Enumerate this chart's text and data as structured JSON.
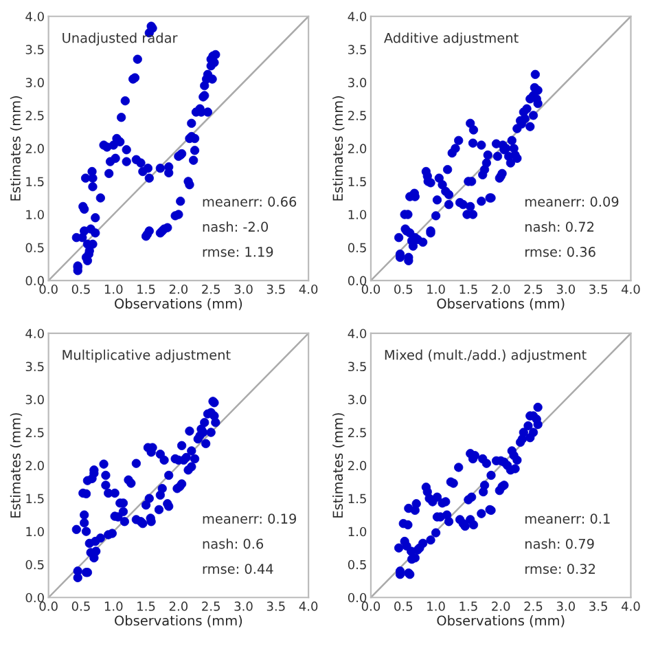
{
  "chart_data": [
    {
      "type": "scatter",
      "xlabel": "Observations (mm)",
      "ylabel": "Estimates (mm)",
      "annotations": [
        "Unadjusted radar",
        "meanerr: 0.66",
        "nash: -2.0",
        "rmse: 1.19"
      ],
      "xlim": [
        0,
        4
      ],
      "ylim": [
        0,
        4
      ],
      "xticks": [
        {
          "value": 0,
          "label": "0.0"
        },
        {
          "value": 0.5,
          "label": "0.5"
        },
        {
          "value": 1,
          "label": "1.0"
        },
        {
          "value": 1.5,
          "label": "1.5"
        },
        {
          "value": 2,
          "label": "2.0"
        },
        {
          "value": 2.5,
          "label": "2.5"
        },
        {
          "value": 3,
          "label": "3.0"
        },
        {
          "value": 3.5,
          "label": "3.5"
        },
        {
          "value": 4,
          "label": "4.0"
        }
      ],
      "yticks": [
        {
          "value": 0,
          "label": "0.0"
        },
        {
          "value": 0.5,
          "label": "0.5"
        },
        {
          "value": 1,
          "label": "1.0"
        },
        {
          "value": 1.5,
          "label": "1.5"
        },
        {
          "value": 2,
          "label": "2.0"
        },
        {
          "value": 2.5,
          "label": "2.5"
        },
        {
          "value": 3,
          "label": "3.0"
        },
        {
          "value": 3.5,
          "label": "3.5"
        },
        {
          "value": 4,
          "label": "4.0"
        }
      ],
      "series": [
        {
          "type": "line",
          "marker": "none",
          "color": "#aaaaaa",
          "x": [
            0,
            4
          ],
          "values": [
            0,
            4
          ]
        },
        {
          "marker": "circle",
          "color": "#0000cc",
          "x": [
            0.43,
            0.45,
            0.45,
            0.45,
            0.52,
            0.53,
            0.55,
            0.55,
            0.57,
            0.58,
            0.6,
            0.6,
            0.62,
            0.63,
            0.65,
            0.67,
            0.68,
            0.68,
            0.68,
            0.72,
            0.72,
            0.8,
            0.85,
            0.9,
            0.93,
            0.95,
            1.0,
            1.03,
            1.05,
            1.1,
            1.12,
            1.18,
            1.2,
            1.2,
            1.3,
            1.33,
            1.35,
            1.37,
            1.42,
            1.45,
            1.53,
            1.55,
            1.5,
            1.52,
            1.55,
            1.55,
            1.58,
            1.6,
            1.72,
            1.75,
            1.78,
            1.83,
            1.85,
            1.85,
            1.72,
            1.95,
            2.0,
            2.03,
            2.0,
            2.03,
            2.05,
            2.15,
            2.17,
            2.17,
            2.2,
            2.2,
            2.23,
            2.25,
            2.25,
            2.27,
            2.33,
            2.35,
            2.38,
            2.4,
            2.4,
            2.43,
            2.45,
            2.45,
            2.5,
            2.5,
            2.52,
            2.53,
            2.55,
            2.57
          ],
          "values": [
            0.65,
            0.2,
            0.15,
            0.22,
            0.65,
            1.12,
            1.08,
            0.75,
            1.55,
            0.35,
            0.55,
            0.3,
            0.4,
            0.45,
            0.78,
            1.65,
            1.55,
            1.42,
            0.55,
            0.95,
            0.72,
            1.25,
            2.05,
            2.02,
            1.62,
            1.8,
            2.05,
            1.85,
            2.15,
            2.1,
            2.47,
            2.72,
            1.98,
            1.8,
            3.05,
            3.07,
            1.83,
            3.35,
            1.78,
            1.65,
            1.7,
            1.55,
            0.67,
            0.7,
            0.75,
            3.75,
            3.85,
            3.82,
            0.72,
            0.75,
            0.78,
            0.8,
            1.72,
            1.63,
            1.7,
            0.98,
            1.0,
            1.2,
            1.88,
            1.9,
            1.92,
            1.5,
            1.45,
            2.15,
            2.18,
            2.38,
            1.82,
            2.15,
            1.97,
            2.55,
            2.6,
            2.55,
            2.78,
            2.8,
            2.95,
            3.05,
            2.55,
            3.12,
            3.25,
            3.35,
            3.05,
            3.4,
            3.3,
            3.42
          ]
        }
      ]
    },
    {
      "type": "scatter",
      "xlabel": "Observations (mm)",
      "ylabel": "Estimates (mm)",
      "annotations": [
        "Additive adjustment",
        "meanerr: 0.09",
        "nash: 0.72",
        "rmse: 0.36"
      ],
      "xlim": [
        0,
        4
      ],
      "ylim": [
        0,
        4
      ],
      "xticks": [
        {
          "value": 0,
          "label": "0.0"
        },
        {
          "value": 0.5,
          "label": "0.5"
        },
        {
          "value": 1,
          "label": "1.0"
        },
        {
          "value": 1.5,
          "label": "1.5"
        },
        {
          "value": 2,
          "label": "2.0"
        },
        {
          "value": 2.5,
          "label": "2.5"
        },
        {
          "value": 3,
          "label": "3.0"
        },
        {
          "value": 3.5,
          "label": "3.5"
        },
        {
          "value": 4,
          "label": "4.0"
        }
      ],
      "yticks": [
        {
          "value": 0,
          "label": "0.0"
        },
        {
          "value": 0.5,
          "label": "0.5"
        },
        {
          "value": 1,
          "label": "1.0"
        },
        {
          "value": 1.5,
          "label": "1.5"
        },
        {
          "value": 2,
          "label": "2.0"
        },
        {
          "value": 2.5,
          "label": "2.5"
        },
        {
          "value": 3,
          "label": "3.0"
        },
        {
          "value": 3.5,
          "label": "3.5"
        },
        {
          "value": 4,
          "label": "4.0"
        }
      ],
      "series": [
        {
          "type": "line",
          "marker": "none",
          "color": "#aaaaaa",
          "x": [
            0,
            4
          ],
          "values": [
            0,
            4
          ]
        },
        {
          "marker": "circle",
          "color": "#0000cc",
          "x": [
            0.43,
            0.45,
            0.45,
            0.52,
            0.53,
            0.55,
            0.57,
            0.58,
            0.58,
            0.6,
            0.6,
            0.63,
            0.65,
            0.67,
            0.68,
            0.68,
            0.72,
            0.8,
            0.85,
            0.87,
            0.88,
            0.92,
            0.92,
            0.92,
            1.0,
            1.02,
            1.05,
            1.1,
            1.15,
            1.18,
            1.2,
            1.2,
            1.25,
            1.3,
            1.35,
            1.37,
            1.42,
            1.48,
            1.5,
            1.53,
            1.53,
            1.58,
            1.57,
            1.57,
            1.55,
            1.7,
            1.7,
            1.72,
            1.75,
            1.78,
            1.8,
            1.83,
            1.85,
            1.93,
            1.95,
            1.98,
            2.0,
            2.02,
            2.03,
            2.05,
            2.08,
            2.12,
            2.15,
            2.17,
            2.2,
            2.22,
            2.25,
            2.25,
            2.3,
            2.32,
            2.35,
            2.37,
            2.4,
            2.45,
            2.45,
            2.5,
            2.5,
            2.52,
            2.53,
            2.55,
            2.57,
            2.57
          ],
          "values": [
            0.65,
            0.4,
            0.35,
            1.0,
            0.78,
            0.75,
            1.0,
            0.35,
            0.3,
            1.27,
            0.72,
            0.6,
            0.52,
            1.32,
            1.27,
            0.65,
            0.62,
            0.58,
            1.65,
            1.58,
            1.5,
            1.48,
            0.72,
            0.75,
            0.98,
            1.22,
            1.55,
            1.45,
            1.35,
            1.68,
            1.15,
            1.3,
            1.93,
            2.0,
            2.12,
            1.18,
            1.15,
            1.0,
            1.5,
            1.12,
            2.38,
            2.28,
            1.0,
            2.08,
            1.5,
            1.2,
            2.05,
            1.6,
            1.68,
            1.78,
            1.9,
            1.25,
            1.25,
            2.07,
            1.88,
            1.55,
            1.58,
            1.62,
            2.05,
            1.98,
            2.0,
            1.88,
            1.78,
            2.12,
            2.0,
            1.9,
            1.85,
            2.3,
            2.42,
            2.37,
            2.55,
            2.45,
            2.6,
            2.33,
            2.75,
            2.8,
            2.5,
            2.92,
            3.12,
            2.75,
            2.88,
            2.68
          ]
        }
      ]
    },
    {
      "type": "scatter",
      "xlabel": "Observations (mm)",
      "ylabel": "Estimates (mm)",
      "annotations": [
        "Multiplicative adjustment",
        "meanerr: 0.19",
        "nash: 0.6",
        "rmse: 0.44"
      ],
      "xlim": [
        0,
        4
      ],
      "ylim": [
        0,
        4
      ],
      "xticks": [
        {
          "value": 0,
          "label": "0.0"
        },
        {
          "value": 0.5,
          "label": "0.5"
        },
        {
          "value": 1,
          "label": "1.0"
        },
        {
          "value": 1.5,
          "label": "1.5"
        },
        {
          "value": 2,
          "label": "2.0"
        },
        {
          "value": 2.5,
          "label": "2.5"
        },
        {
          "value": 3,
          "label": "3.0"
        },
        {
          "value": 3.5,
          "label": "3.5"
        },
        {
          "value": 4,
          "label": "4.0"
        }
      ],
      "yticks": [
        {
          "value": 0,
          "label": "0.0"
        },
        {
          "value": 0.5,
          "label": "0.5"
        },
        {
          "value": 1,
          "label": "1.0"
        },
        {
          "value": 1.5,
          "label": "1.5"
        },
        {
          "value": 2,
          "label": "2.0"
        },
        {
          "value": 2.5,
          "label": "2.5"
        },
        {
          "value": 3,
          "label": "3.0"
        },
        {
          "value": 3.5,
          "label": "3.5"
        },
        {
          "value": 4,
          "label": "4.0"
        }
      ],
      "series": [
        {
          "type": "line",
          "marker": "none",
          "color": "#aaaaaa",
          "x": [
            0,
            4
          ],
          "values": [
            0,
            4
          ]
        },
        {
          "marker": "circle",
          "color": "#0000cc",
          "x": [
            0.43,
            0.45,
            0.45,
            0.53,
            0.55,
            0.55,
            0.58,
            0.58,
            0.58,
            0.6,
            0.6,
            0.63,
            0.65,
            0.67,
            0.7,
            0.7,
            0.7,
            0.72,
            0.73,
            0.8,
            0.85,
            0.88,
            0.88,
            0.92,
            0.92,
            0.98,
            1.02,
            1.02,
            1.07,
            1.1,
            1.15,
            1.15,
            1.17,
            1.23,
            1.27,
            1.35,
            1.35,
            1.42,
            1.45,
            1.5,
            1.53,
            1.55,
            1.57,
            1.58,
            1.6,
            1.58,
            1.7,
            1.72,
            1.72,
            1.75,
            1.78,
            1.85,
            1.83,
            1.85,
            1.95,
            2.0,
            1.98,
            2.02,
            2.05,
            2.05,
            2.08,
            2.12,
            2.15,
            2.17,
            2.2,
            2.2,
            2.25,
            2.3,
            2.33,
            2.35,
            2.38,
            2.4,
            2.42,
            2.45,
            2.5,
            2.5,
            2.53,
            2.55,
            2.57,
            2.55
          ],
          "values": [
            1.03,
            0.4,
            0.3,
            1.58,
            1.13,
            1.25,
            1.57,
            1.0,
            0.38,
            0.38,
            1.77,
            0.82,
            0.68,
            1.8,
            1.88,
            1.93,
            0.6,
            0.85,
            0.7,
            0.9,
            2.02,
            1.85,
            1.7,
            1.58,
            0.95,
            0.97,
            1.58,
            1.23,
            1.22,
            1.43,
            1.43,
            1.3,
            1.15,
            1.78,
            1.73,
            2.03,
            1.18,
            1.15,
            1.12,
            1.4,
            2.27,
            1.5,
            1.2,
            2.2,
            2.27,
            1.15,
            1.33,
            2.17,
            1.55,
            1.65,
            2.08,
            1.38,
            1.42,
            1.85,
            2.1,
            2.08,
            1.65,
            1.68,
            1.72,
            2.3,
            2.08,
            2.12,
            1.93,
            2.52,
            2.22,
            1.98,
            2.1,
            2.4,
            2.45,
            2.55,
            2.5,
            2.65,
            2.33,
            2.78,
            2.8,
            2.5,
            2.97,
            2.95,
            2.65,
            2.75
          ]
        }
      ]
    },
    {
      "type": "scatter",
      "xlabel": "Observations (mm)",
      "ylabel": "Estimates (mm)",
      "annotations": [
        "Mixed (mult./add.) adjustment",
        "meanerr: 0.1",
        "nash: 0.79",
        "rmse: 0.32"
      ],
      "xlim": [
        0,
        4
      ],
      "ylim": [
        0,
        4
      ],
      "xticks": [
        {
          "value": 0,
          "label": "0.0"
        },
        {
          "value": 0.5,
          "label": "0.5"
        },
        {
          "value": 1,
          "label": "1.0"
        },
        {
          "value": 1.5,
          "label": "1.5"
        },
        {
          "value": 2,
          "label": "2.0"
        },
        {
          "value": 2.5,
          "label": "2.5"
        },
        {
          "value": 3,
          "label": "3.0"
        },
        {
          "value": 3.5,
          "label": "3.5"
        },
        {
          "value": 4,
          "label": "4.0"
        }
      ],
      "yticks": [
        {
          "value": 0,
          "label": "0.0"
        },
        {
          "value": 0.5,
          "label": "0.5"
        },
        {
          "value": 1,
          "label": "1.0"
        },
        {
          "value": 1.5,
          "label": "1.5"
        },
        {
          "value": 2,
          "label": "2.0"
        },
        {
          "value": 2.5,
          "label": "2.5"
        },
        {
          "value": 3,
          "label": "3.0"
        },
        {
          "value": 3.5,
          "label": "3.5"
        },
        {
          "value": 4,
          "label": "4.0"
        }
      ],
      "series": [
        {
          "type": "line",
          "marker": "none",
          "color": "#aaaaaa",
          "x": [
            0,
            4
          ],
          "values": [
            0,
            4
          ]
        },
        {
          "marker": "circle",
          "color": "#0000cc",
          "x": [
            0.43,
            0.45,
            0.45,
            0.5,
            0.52,
            0.55,
            0.57,
            0.58,
            0.58,
            0.6,
            0.62,
            0.63,
            0.7,
            0.68,
            0.68,
            0.72,
            0.75,
            0.8,
            0.85,
            0.87,
            0.9,
            0.92,
            0.95,
            1.0,
            1.02,
            1.02,
            1.07,
            1.1,
            1.15,
            1.17,
            1.2,
            1.23,
            1.27,
            1.35,
            1.37,
            1.42,
            1.45,
            1.5,
            1.53,
            1.53,
            1.55,
            1.57,
            1.58,
            1.6,
            1.7,
            1.72,
            1.73,
            1.75,
            1.78,
            1.83,
            1.85,
            1.85,
            1.93,
            2.0,
            1.98,
            2.02,
            2.05,
            2.05,
            2.1,
            2.15,
            2.17,
            2.2,
            2.22,
            2.25,
            2.3,
            2.33,
            2.35,
            2.42,
            2.45,
            2.45,
            2.5,
            2.5,
            2.55,
            2.57,
            2.57
          ],
          "values": [
            0.75,
            0.4,
            0.35,
            1.12,
            0.85,
            0.78,
            1.1,
            1.35,
            0.37,
            0.35,
            0.7,
            0.58,
            1.42,
            1.32,
            0.6,
            0.72,
            0.75,
            0.82,
            1.67,
            1.6,
            1.5,
            0.87,
            1.45,
            0.98,
            1.52,
            1.22,
            1.22,
            1.43,
            1.45,
            1.25,
            1.15,
            1.75,
            1.73,
            1.97,
            1.18,
            1.12,
            1.08,
            1.48,
            2.18,
            1.18,
            1.52,
            2.1,
            1.1,
            2.15,
            1.27,
            2.1,
            1.6,
            1.7,
            2.03,
            1.33,
            1.32,
            1.85,
            2.07,
            2.07,
            1.62,
            1.68,
            1.7,
            2.05,
            2.0,
            1.93,
            2.22,
            2.15,
            1.95,
            2.08,
            2.35,
            2.4,
            2.5,
            2.6,
            2.42,
            2.75,
            2.75,
            2.5,
            2.7,
            2.88,
            2.62
          ]
        }
      ]
    }
  ]
}
